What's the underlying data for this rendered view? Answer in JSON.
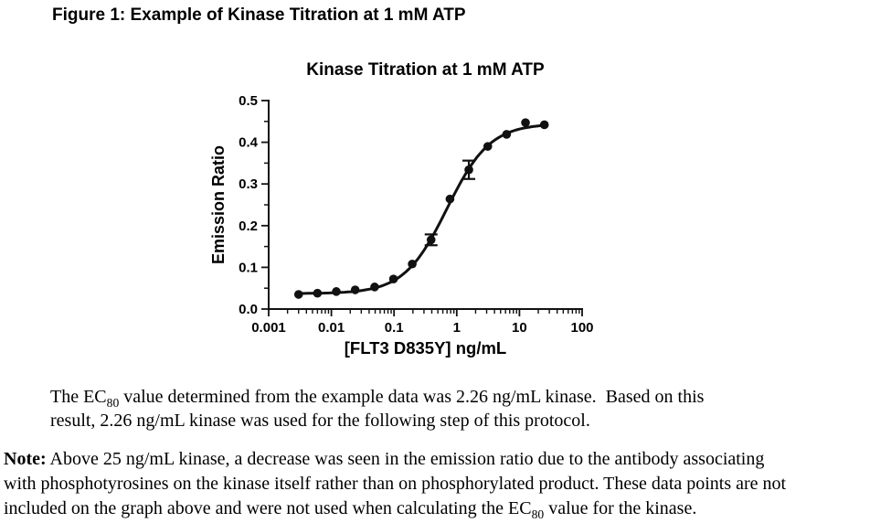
{
  "figure_title": "Figure 1: Example of Kinase Titration at 1 mM ATP",
  "chart_data": {
    "type": "scatter",
    "title": "Kinase Titration at 1 mM ATP",
    "xlabel": "[FLT3 D835Y] ng/mL",
    "ylabel": "Emission Ratio",
    "x_scale": "log",
    "xlim": [
      0.001,
      100
    ],
    "ylim": [
      0.0,
      0.5
    ],
    "x_major_ticks": [
      0.001,
      0.01,
      0.1,
      1,
      10,
      100
    ],
    "x_tick_labels": [
      "0.001",
      "0.01",
      "0.1",
      "1",
      "10",
      "100"
    ],
    "y_major_ticks": [
      0.0,
      0.1,
      0.2,
      0.3,
      0.4,
      0.5
    ],
    "y_tick_labels": [
      "0.0",
      "0.1",
      "0.2",
      "0.3",
      "0.4",
      "0.5"
    ],
    "y_minor_ticks": [
      0.05,
      0.15,
      0.25,
      0.35,
      0.45
    ],
    "grid": false,
    "legend": "none",
    "marker_color": "#111111",
    "line_color": "#111111",
    "points": [
      {
        "x": 0.003,
        "y": 0.035
      },
      {
        "x": 0.006,
        "y": 0.038
      },
      {
        "x": 0.012,
        "y": 0.042
      },
      {
        "x": 0.024,
        "y": 0.046
      },
      {
        "x": 0.049,
        "y": 0.053
      },
      {
        "x": 0.098,
        "y": 0.072
      },
      {
        "x": 0.195,
        "y": 0.108
      },
      {
        "x": 0.39,
        "y": 0.166,
        "err": 0.013
      },
      {
        "x": 0.78,
        "y": 0.264
      },
      {
        "x": 1.56,
        "y": 0.334,
        "err": 0.022
      },
      {
        "x": 3.125,
        "y": 0.39
      },
      {
        "x": 6.25,
        "y": 0.419
      },
      {
        "x": 12.5,
        "y": 0.447
      },
      {
        "x": 25,
        "y": 0.442
      }
    ],
    "fit_curve": {
      "model": "4PL",
      "bottom": 0.037,
      "top": 0.445,
      "ec50": 0.7,
      "hill": 1.27
    }
  },
  "caption": {
    "line1_pre": "The EC",
    "line1_sub": "80",
    "line1_post": " value determined from the example data was 2.26 ng/mL kinase.  Based on this",
    "line2": "result, 2.26 ng/mL kinase was used for the following step of this protocol."
  },
  "note": {
    "label": "Note:",
    "line1_rest": " Above 25 ng/mL kinase, a decrease was seen in the emission ratio due to the antibody associating",
    "line2": "with phosphotyrosines on the kinase itself rather than on phosphorylated product. These data points are not",
    "line3_pre": "included on the graph above and were not used when calculating the EC",
    "line3_sub": "80",
    "line3_post": " value for the kinase."
  }
}
